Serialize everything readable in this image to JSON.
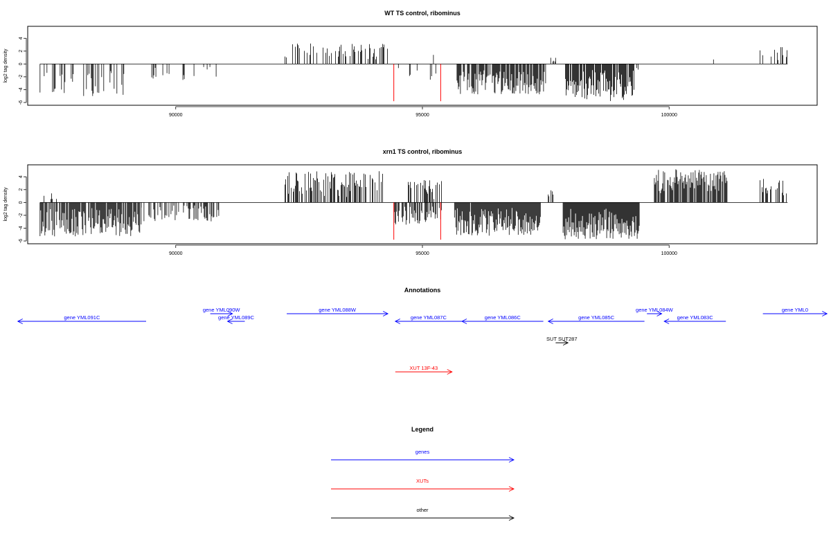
{
  "chart_data": [
    {
      "type": "bar",
      "title": "WT TS control, ribominus",
      "ylabel": "log2 tag density",
      "xlim": [
        87000,
        103000
      ],
      "ylim": [
        -6,
        5
      ],
      "x_ticks": [
        90000,
        95000,
        100000
      ],
      "x_tick_labels": [
        "90000",
        "95000",
        "100000"
      ],
      "y_ticks": [
        -6,
        -4,
        -2,
        0,
        2,
        4
      ],
      "y_tick_labels": [
        "-6",
        "-4",
        "-2",
        "0",
        "2",
        "4"
      ],
      "grid": false,
      "colors": {
        "bars": "#000000",
        "highlight": "#ff0000"
      },
      "segments": [
        {
          "x0": 87250,
          "x1": 88950,
          "sign": -1,
          "max": 5.0,
          "density": 0.25
        },
        {
          "x0": 89500,
          "x1": 91000,
          "sign": -1,
          "max": 2.5,
          "density": 0.12
        },
        {
          "x0": 92200,
          "x1": 94300,
          "sign": 1,
          "max": 3.3,
          "density": 0.35
        },
        {
          "x0": 94400,
          "x1": 95300,
          "sign": -1,
          "max": 2.8,
          "density": 0.08
        },
        {
          "x0": 94900,
          "x1": 95300,
          "sign": 1,
          "max": 2.0,
          "density": 0.1
        },
        {
          "x0": 95700,
          "x1": 97500,
          "sign": -1,
          "max": 4.8,
          "density": 0.75
        },
        {
          "x0": 97600,
          "x1": 97700,
          "sign": 1,
          "max": 1.0,
          "density": 0.5
        },
        {
          "x0": 97900,
          "x1": 99300,
          "sign": -1,
          "max": 5.8,
          "density": 0.9
        },
        {
          "x0": 99300,
          "x1": 99400,
          "sign": -1,
          "max": 3.5,
          "density": 0.4
        },
        {
          "x0": 99900,
          "x1": 100200,
          "sign": 1,
          "max": 2.3,
          "density": 0.05
        },
        {
          "x0": 100800,
          "x1": 101100,
          "sign": 1,
          "max": 2.5,
          "density": 0.06
        },
        {
          "x0": 101800,
          "x1": 102400,
          "sign": 1,
          "max": 2.8,
          "density": 0.3
        }
      ],
      "highlights": [
        {
          "x": 94420,
          "y": -5.8
        },
        {
          "x": 95370,
          "y": -5.8
        }
      ]
    },
    {
      "type": "bar",
      "title": "xrn1 TS control, ribominus",
      "ylabel": "log2 tag density",
      "xlim": [
        87000,
        103000
      ],
      "ylim": [
        -6,
        5
      ],
      "x_ticks": [
        90000,
        95000,
        100000
      ],
      "x_tick_labels": [
        "90000",
        "95000",
        "100000"
      ],
      "y_ticks": [
        -6,
        -4,
        -2,
        0,
        2,
        4
      ],
      "y_tick_labels": [
        "-6",
        "-4",
        "-2",
        "0",
        "2",
        "4"
      ],
      "grid": false,
      "colors": {
        "bars": "#000000",
        "highlight": "#ff0000"
      },
      "segments": [
        {
          "x0": 87250,
          "x1": 89300,
          "sign": -1,
          "max": 5.3,
          "density": 0.85
        },
        {
          "x0": 87300,
          "x1": 87600,
          "sign": 1,
          "max": 1.7,
          "density": 0.3
        },
        {
          "x0": 89300,
          "x1": 90900,
          "sign": -1,
          "max": 3.0,
          "density": 0.45
        },
        {
          "x0": 92200,
          "x1": 94200,
          "sign": 1,
          "max": 5.0,
          "density": 0.6
        },
        {
          "x0": 94400,
          "x1": 95400,
          "sign": -1,
          "max": 3.5,
          "density": 0.5
        },
        {
          "x0": 94700,
          "x1": 95400,
          "sign": 1,
          "max": 3.5,
          "density": 0.4
        },
        {
          "x0": 95650,
          "x1": 97400,
          "sign": -1,
          "max": 5.2,
          "density": 0.95
        },
        {
          "x0": 97550,
          "x1": 97650,
          "sign": 1,
          "max": 2.5,
          "density": 0.7
        },
        {
          "x0": 97850,
          "x1": 99400,
          "sign": -1,
          "max": 5.8,
          "density": 1.0
        },
        {
          "x0": 99700,
          "x1": 101200,
          "sign": 1,
          "max": 5.2,
          "density": 0.8
        },
        {
          "x0": 101800,
          "x1": 102400,
          "sign": 1,
          "max": 3.8,
          "density": 0.5
        }
      ],
      "highlights": [
        {
          "x": 94420,
          "y": -5.8
        },
        {
          "x": 95370,
          "y": -5.8
        }
      ]
    }
  ],
  "annotations": {
    "title": "Annotations",
    "items": [
      {
        "label": "gene YML091C",
        "start": 89400,
        "end": 86800,
        "row": 1,
        "color": "#0000ff"
      },
      {
        "label": "gene YML090W",
        "start": 90700,
        "end": 91150,
        "row": 0,
        "color": "#0000ff"
      },
      {
        "label": "gene YML089C",
        "start": 91400,
        "end": 91050,
        "row": 1,
        "color": "#0000ff"
      },
      {
        "label": "gene YML088W",
        "start": 92250,
        "end": 94300,
        "row": 0,
        "color": "#0000ff"
      },
      {
        "label": "gene YML087C",
        "start": 95800,
        "end": 94450,
        "row": 1,
        "color": "#0000ff"
      },
      {
        "label": "gene YML086C",
        "start": 97450,
        "end": 95800,
        "row": 1,
        "color": "#0000ff"
      },
      {
        "label": "gene YML085C",
        "start": 99500,
        "end": 97550,
        "row": 1,
        "color": "#0000ff"
      },
      {
        "label": "gene YML084W",
        "start": 99550,
        "end": 99850,
        "row": 0,
        "color": "#0000ff"
      },
      {
        "label": "gene YML083C",
        "start": 101150,
        "end": 99900,
        "row": 1,
        "color": "#0000ff"
      },
      {
        "label": "gene YML0",
        "start": 101900,
        "end": 103200,
        "row": 0,
        "color": "#0000ff"
      },
      {
        "label": "SUT SUT287",
        "start": 97700,
        "end": 97950,
        "row": 2,
        "color": "#000000"
      },
      {
        "label": "XUT 13F-43",
        "start": 94450,
        "end": 95600,
        "row": 3,
        "color": "#ff0000"
      }
    ]
  },
  "legend": {
    "title": "Legend",
    "items": [
      {
        "label": "genes",
        "color": "#0000ff"
      },
      {
        "label": "XUTs",
        "color": "#ff0000"
      },
      {
        "label": "other",
        "color": "#000000"
      }
    ]
  }
}
